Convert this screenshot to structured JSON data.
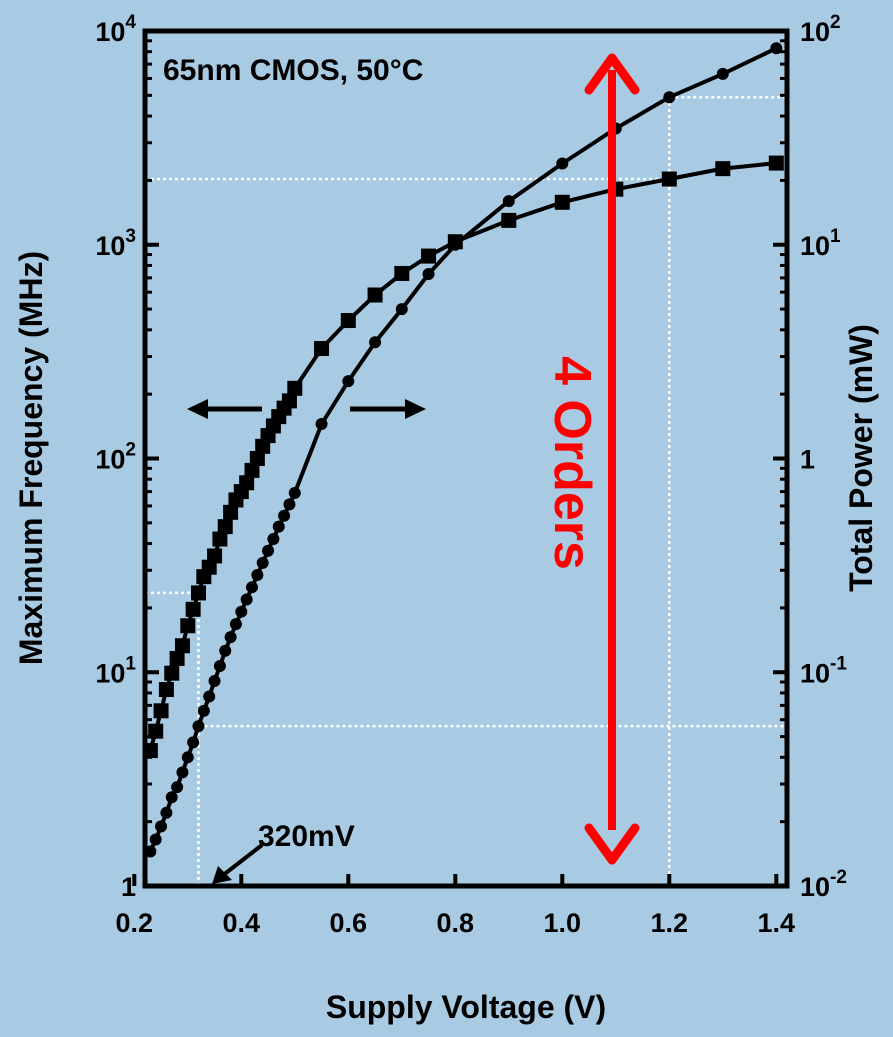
{
  "chart_data": {
    "type": "line",
    "annotation_condition": "65nm CMOS, 50°C",
    "annotation_voltage": "320mV",
    "annotation_orders": "4 Orders",
    "xlabel": "Supply Voltage (V)",
    "ylabel_left": "Maximum Frequency (MHz)",
    "ylabel_right": "Total Power (mW)",
    "xlim": [
      0.22,
      1.42
    ],
    "ylim_left": [
      1,
      10000
    ],
    "ylim_right": [
      0.01,
      100
    ],
    "log_scale": true,
    "grid": false,
    "x_ticks": [
      0.2,
      0.4,
      0.6,
      0.8,
      1.0,
      1.2,
      1.4
    ],
    "x_tick_labels": [
      "0.2",
      "0.4",
      "0.6",
      "0.8",
      "1.0",
      "1.2",
      "1.4"
    ],
    "left_tick_labels": [
      {
        "base": "1",
        "exp": ""
      },
      {
        "base": "10",
        "exp": "1"
      },
      {
        "base": "10",
        "exp": "2"
      },
      {
        "base": "10",
        "exp": "3"
      },
      {
        "base": "10",
        "exp": "4"
      }
    ],
    "right_tick_labels": [
      {
        "base": "10",
        "exp": "-2"
      },
      {
        "base": "10",
        "exp": "-1"
      },
      {
        "base": "1",
        "exp": ""
      },
      {
        "base": "10",
        "exp": "1"
      },
      {
        "base": "10",
        "exp": "2"
      }
    ],
    "colors": {
      "background": "#a8cbe3",
      "series": "#000000",
      "arrow": "#ff0000",
      "guides": "#ffffff"
    },
    "series": [
      {
        "axis": "left",
        "marker": "square",
        "x": [
          0.23,
          0.24,
          0.25,
          0.26,
          0.27,
          0.28,
          0.29,
          0.3,
          0.31,
          0.32,
          0.33,
          0.34,
          0.35,
          0.36,
          0.37,
          0.38,
          0.39,
          0.4,
          0.41,
          0.42,
          0.43,
          0.44,
          0.45,
          0.46,
          0.47,
          0.48,
          0.49,
          0.5,
          0.55,
          0.6,
          0.65,
          0.7,
          0.75,
          0.8,
          0.9,
          1.0,
          1.1,
          1.2,
          1.3,
          1.4
        ],
        "y": [
          4.3,
          5.3,
          6.6,
          8.3,
          9.9,
          11.6,
          13.3,
          16.5,
          19.7,
          23.5,
          28,
          31,
          35,
          42,
          48,
          56,
          64,
          70,
          77,
          88,
          100,
          114,
          128,
          142,
          157,
          172,
          186,
          213,
          327,
          442,
          582,
          734,
          885,
          1033,
          1300,
          1580,
          1820,
          2030,
          2270,
          2410
        ]
      },
      {
        "axis": "right",
        "marker": "circle",
        "x": [
          0.23,
          0.24,
          0.25,
          0.26,
          0.27,
          0.28,
          0.29,
          0.3,
          0.31,
          0.32,
          0.33,
          0.34,
          0.35,
          0.36,
          0.37,
          0.38,
          0.39,
          0.4,
          0.41,
          0.42,
          0.43,
          0.44,
          0.45,
          0.46,
          0.47,
          0.48,
          0.49,
          0.5,
          0.55,
          0.6,
          0.65,
          0.7,
          0.75,
          0.8,
          0.9,
          1.0,
          1.1,
          1.2,
          1.3,
          1.4
        ],
        "y": [
          0.0145,
          0.0165,
          0.019,
          0.022,
          0.026,
          0.029,
          0.034,
          0.04,
          0.047,
          0.056,
          0.066,
          0.077,
          0.091,
          0.107,
          0.126,
          0.146,
          0.168,
          0.192,
          0.219,
          0.25,
          0.285,
          0.325,
          0.37,
          0.42,
          0.48,
          0.54,
          0.61,
          0.69,
          1.45,
          2.3,
          3.5,
          5.0,
          7.3,
          10.0,
          16.0,
          24.0,
          35.0,
          49.0,
          63.0,
          83.0
        ]
      }
    ]
  }
}
